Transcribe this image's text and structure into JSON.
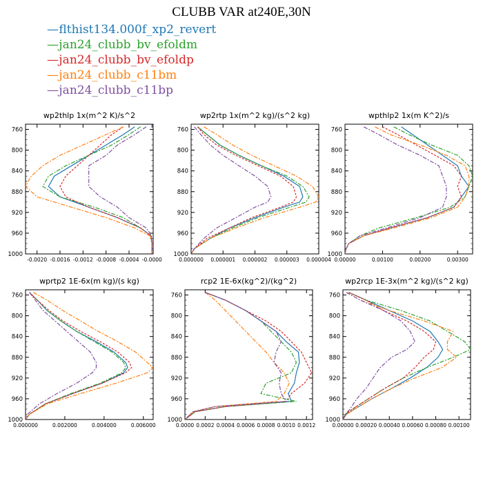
{
  "title": "CLUBB VAR at240E,30N",
  "series_legend": [
    {
      "name": "flthist134.000f_xp2_revert",
      "color": "#1f77b4"
    },
    {
      "name": "jan24_clubb_bv_efoldm",
      "color": "#2ca02c"
    },
    {
      "name": "jan24_clubb_bv_efoldp",
      "color": "#d62728"
    },
    {
      "name": "jan24_clubb_c11bm",
      "color": "#ff7f0e"
    },
    {
      "name": "jan24_clubb_c11bp",
      "color": "#7f4fa0"
    }
  ],
  "chart_data": [
    {
      "type": "line",
      "title": "wp2thlp  1x(m^2 K)/s^2",
      "xlim": [
        -0.0022,
        2e-05
      ],
      "xticks": [
        -0.002,
        -0.0016,
        -0.0012,
        -0.0008,
        -0.0004,
        0
      ],
      "xtick_labels": [
        "-0.0020",
        "-0.0016",
        "-0.0012",
        "-0.0008",
        "-0.0004",
        "-0.0000"
      ],
      "ylim": [
        1000,
        750
      ],
      "yticks": [
        760,
        800,
        840,
        880,
        920,
        960,
        1000
      ],
      "y": [
        755,
        770,
        790,
        810,
        830,
        850,
        870,
        890,
        910,
        930,
        950,
        965,
        980,
        990,
        1000
      ],
      "series": [
        {
          "name": "flthist134.000f_xp2_revert",
          "values": [
            -0.0003,
            -0.0005,
            -0.0008,
            -0.0011,
            -0.0014,
            -0.0017,
            -0.0018,
            -0.0016,
            -0.0011,
            -0.0006,
            -0.0002,
            -2e-05,
            0,
            0,
            0
          ]
        },
        {
          "name": "jan24_clubb_bv_efoldm",
          "values": [
            -0.0002,
            -0.0004,
            -0.0007,
            -0.0011,
            -0.0015,
            -0.0018,
            -0.0019,
            -0.0016,
            -0.001,
            -0.0005,
            -0.0002,
            -2e-05,
            0,
            0,
            0
          ]
        },
        {
          "name": "jan24_clubb_bv_efoldp",
          "values": [
            -0.0005,
            -0.0007,
            -0.0009,
            -0.0011,
            -0.0013,
            -0.0015,
            -0.0016,
            -0.0015,
            -0.0011,
            -0.0006,
            -0.0002,
            -2e-05,
            0,
            0,
            0
          ]
        },
        {
          "name": "jan24_clubb_c11bm",
          "values": [
            -0.0005,
            -0.0008,
            -0.0012,
            -0.0016,
            -0.0019,
            -0.0021,
            -0.0022,
            -0.002,
            -0.0014,
            -0.0008,
            -0.0003,
            -4e-05,
            0,
            0,
            0
          ]
        },
        {
          "name": "jan24_clubb_c11bp",
          "values": [
            -0.0001,
            -0.0003,
            -0.0006,
            -0.0008,
            -0.0011,
            -0.0011,
            -0.0011,
            -0.0009,
            -0.0006,
            -0.0004,
            -0.0001,
            -1e-05,
            0,
            0,
            0
          ]
        }
      ]
    },
    {
      "type": "line",
      "title": "wp2rtp  1x(m^2 kg)/(s^2 kg)",
      "xlim": [
        0,
        4e-06
      ],
      "xticks": [
        0,
        1e-06,
        2e-06,
        3e-06,
        4e-06
      ],
      "xtick_labels": [
        "0.000000",
        "0.000001",
        "0.000002",
        "0.000003",
        "0.000004"
      ],
      "ylim": [
        1000,
        750
      ],
      "yticks": [
        760,
        800,
        840,
        880,
        920,
        960,
        1000
      ],
      "y": [
        755,
        770,
        790,
        810,
        830,
        850,
        870,
        890,
        900,
        910,
        930,
        950,
        970,
        990,
        1000
      ],
      "series": [
        {
          "name": "flthist134.000f_xp2_revert",
          "values": [
            2e-07,
            5e-07,
            9e-07,
            1.5e-06,
            2.2e-06,
            2.9e-06,
            3.4e-06,
            3.5e-06,
            3.4e-06,
            2.9e-06,
            2e-06,
            1.2e-06,
            6e-07,
            1e-07,
            0
          ]
        },
        {
          "name": "jan24_clubb_bv_efoldm",
          "values": [
            2e-07,
            5e-07,
            9e-07,
            1.5e-06,
            2.2e-06,
            3e-06,
            3.5e-06,
            3.7e-06,
            3.6e-06,
            3.1e-06,
            2.1e-06,
            1.3e-06,
            6e-07,
            1e-07,
            0
          ]
        },
        {
          "name": "jan24_clubb_bv_efoldp",
          "values": [
            2e-07,
            4e-07,
            8e-07,
            1.4e-06,
            2.1e-06,
            2.8e-06,
            3.2e-06,
            3.3e-06,
            3.2e-06,
            2.8e-06,
            1.9e-06,
            1.2e-06,
            5e-07,
            1e-07,
            0
          ]
        },
        {
          "name": "jan24_clubb_c11bm",
          "values": [
            4e-07,
            8e-07,
            1.3e-06,
            1.9e-06,
            2.6e-06,
            3.3e-06,
            3.8e-06,
            4e-06,
            3.9e-06,
            3.4e-06,
            2.3e-06,
            1.4e-06,
            6e-07,
            1e-07,
            0
          ]
        },
        {
          "name": "jan24_clubb_c11bp",
          "values": [
            1e-07,
            3e-07,
            6e-07,
            1e-06,
            1.5e-06,
            2e-06,
            2.4e-06,
            2.5e-06,
            2.4e-06,
            2e-06,
            1.4e-06,
            8e-07,
            4e-07,
            1e-07,
            0
          ]
        }
      ]
    },
    {
      "type": "line",
      "title": "wpthlp2  1x(m K^2)/s",
      "xlim": [
        0,
        0.0034
      ],
      "xticks": [
        0,
        0.001,
        0.002,
        0.003
      ],
      "xtick_labels": [
        "0.00000",
        "0.00100",
        "0.00200",
        "0.00300"
      ],
      "ylim": [
        1000,
        750
      ],
      "yticks": [
        760,
        800,
        840,
        880,
        920,
        960,
        1000
      ],
      "y": [
        755,
        770,
        790,
        810,
        830,
        850,
        870,
        890,
        910,
        930,
        950,
        965,
        980,
        990,
        1000
      ],
      "series": [
        {
          "name": "flthist134.000f_xp2_revert",
          "values": [
            0.0015,
            0.0018,
            0.0022,
            0.0026,
            0.003,
            0.0031,
            0.0033,
            0.0031,
            0.0029,
            0.0022,
            0.0012,
            0.0005,
            0.0001,
            3e-05,
            0
          ]
        },
        {
          "name": "jan24_clubb_bv_efoldm",
          "values": [
            0.0013,
            0.0017,
            0.0023,
            0.003,
            0.0033,
            0.0034,
            0.0033,
            0.0032,
            0.0028,
            0.0019,
            0.0009,
            0.0004,
            0.0001,
            3e-05,
            0
          ]
        },
        {
          "name": "jan24_clubb_bv_efoldp",
          "values": [
            0.001,
            0.0014,
            0.0019,
            0.0024,
            0.0029,
            0.0031,
            0.003,
            0.0031,
            0.0029,
            0.0022,
            0.0012,
            0.0005,
            0.0001,
            3e-05,
            0
          ]
        },
        {
          "name": "jan24_clubb_c11bm",
          "values": [
            0.0008,
            0.0012,
            0.002,
            0.0027,
            0.0032,
            0.0033,
            0.0033,
            0.0032,
            0.003,
            0.0023,
            0.0013,
            0.0005,
            0.0001,
            3e-05,
            0
          ]
        },
        {
          "name": "jan24_clubb_c11bp",
          "values": [
            0.0005,
            0.0009,
            0.0014,
            0.002,
            0.0025,
            0.0026,
            0.0027,
            0.0027,
            0.0026,
            0.002,
            0.0011,
            0.0004,
            0.0001,
            3e-05,
            0
          ]
        }
      ]
    },
    {
      "type": "line",
      "title": "wprtp2  1E-6x(m kg)/(s kg)",
      "xlim": [
        0,
        0.0065
      ],
      "xticks": [
        0,
        0.002,
        0.004,
        0.006
      ],
      "xtick_labels": [
        "0.000000",
        "0.002000",
        "0.004000",
        "0.006000"
      ],
      "ylim": [
        1000,
        750
      ],
      "yticks": [
        760,
        800,
        840,
        880,
        920,
        960,
        1000
      ],
      "y": [
        755,
        770,
        790,
        810,
        830,
        850,
        870,
        890,
        900,
        910,
        930,
        950,
        970,
        990,
        1000
      ],
      "series": [
        {
          "name": "flthist134.000f_xp2_revert",
          "values": [
            0.0002,
            0.0006,
            0.0011,
            0.0018,
            0.0026,
            0.0036,
            0.0045,
            0.0051,
            0.0052,
            0.005,
            0.0039,
            0.0024,
            0.001,
            0.0002,
            0
          ]
        },
        {
          "name": "jan24_clubb_bv_efoldm",
          "values": [
            0.0002,
            0.0006,
            0.0011,
            0.0018,
            0.0026,
            0.0035,
            0.0044,
            0.005,
            0.0051,
            0.0049,
            0.0038,
            0.0023,
            0.001,
            0.0002,
            0
          ]
        },
        {
          "name": "jan24_clubb_bv_efoldp",
          "values": [
            0.0002,
            0.0006,
            0.0012,
            0.0019,
            0.0028,
            0.0038,
            0.0047,
            0.0053,
            0.0054,
            0.0051,
            0.0039,
            0.0024,
            0.001,
            0.0002,
            0
          ]
        },
        {
          "name": "jan24_clubb_c11bm",
          "values": [
            0.0004,
            0.0011,
            0.0019,
            0.0028,
            0.0037,
            0.0047,
            0.0056,
            0.0062,
            0.0065,
            0.0062,
            0.0046,
            0.0028,
            0.0011,
            0.0002,
            0
          ]
        },
        {
          "name": "jan24_clubb_c11bp",
          "values": [
            0.0002,
            0.0005,
            0.0009,
            0.0015,
            0.0021,
            0.0027,
            0.0033,
            0.0036,
            0.0036,
            0.0034,
            0.0026,
            0.0016,
            0.0007,
            0.0001,
            0
          ]
        }
      ]
    },
    {
      "type": "line",
      "title": "rcp2  1E-6x(kg^2)/(kg^2)",
      "xlim": [
        0,
        0.00126
      ],
      "xticks": [
        0,
        0.0002,
        0.0004,
        0.0006,
        0.0008,
        0.001,
        0.0012
      ],
      "xtick_labels": [
        "0.0000",
        "0.0002",
        "0.0004",
        "0.0006",
        "0.0008",
        "0.0010",
        "0.0012"
      ],
      "ylim": [
        1000,
        750
      ],
      "yticks": [
        760,
        800,
        840,
        880,
        920,
        960,
        1000
      ],
      "y": [
        755,
        770,
        790,
        810,
        830,
        850,
        870,
        890,
        910,
        930,
        950,
        965,
        975,
        985,
        1000
      ],
      "series": [
        {
          "name": "flthist134.000f_xp2_revert",
          "values": [
            0.0002,
            0.0004,
            0.0006,
            0.00075,
            0.0009,
            0.001,
            0.00112,
            0.00113,
            0.0011,
            0.00108,
            0.00102,
            0.00105,
            0.0004,
            0.0001,
            0
          ]
        },
        {
          "name": "jan24_clubb_bv_efoldm",
          "values": [
            0.0002,
            0.0004,
            0.0006,
            0.00075,
            0.00085,
            0.00095,
            0.00105,
            0.0011,
            0.00105,
            0.0008,
            0.00075,
            0.0011,
            0.0004,
            0.0001,
            0
          ]
        },
        {
          "name": "jan24_clubb_bv_efoldp",
          "values": [
            0.0002,
            0.0004,
            0.0006,
            0.0008,
            0.00095,
            0.00105,
            0.00115,
            0.0012,
            0.00125,
            0.00118,
            0.00105,
            0.001,
            0.0004,
            0.0001,
            0
          ]
        },
        {
          "name": "jan24_clubb_c11bm",
          "values": [
            0.0002,
            0.0003,
            0.0004,
            0.0005,
            0.0006,
            0.0007,
            0.0008,
            0.00088,
            0.00098,
            0.00103,
            0.00098,
            0.0009,
            0.0003,
            8e-05,
            0
          ]
        },
        {
          "name": "jan24_clubb_c11bp",
          "values": [
            0.0002,
            0.0004,
            0.0006,
            0.00075,
            0.0009,
            0.00095,
            0.0009,
            0.00088,
            0.00095,
            0.00093,
            0.00095,
            0.001,
            0.0003,
            8e-05,
            0
          ]
        }
      ]
    },
    {
      "type": "line",
      "title": "wp2rcp  1E-3x(m^2 kg)/(s^2 kg)",
      "xlim": [
        0,
        0.0011
      ],
      "xticks": [
        0,
        0.0002,
        0.0004,
        0.0006,
        0.0008,
        0.001
      ],
      "xtick_labels": [
        "0.00000",
        "0.00020",
        "0.00040",
        "0.00060",
        "0.00080",
        "0.00100"
      ],
      "ylim": [
        1000,
        750
      ],
      "yticks": [
        760,
        800,
        840,
        880,
        920,
        960,
        1000
      ],
      "y": [
        755,
        770,
        790,
        810,
        830,
        850,
        865,
        880,
        900,
        920,
        940,
        960,
        980,
        990,
        1000
      ],
      "series": [
        {
          "name": "flthist134.000f_xp2_revert",
          "values": [
            5e-05,
            0.0002,
            0.0004,
            0.0006,
            0.00075,
            0.00082,
            0.00086,
            0.00082,
            0.00072,
            0.00058,
            0.00042,
            0.00025,
            0.0001,
            3e-05,
            0
          ]
        },
        {
          "name": "jan24_clubb_bv_efoldm",
          "values": [
            5e-05,
            0.0002,
            0.0005,
            0.00075,
            0.0009,
            0.00105,
            0.0011,
            0.00095,
            0.00072,
            0.00052,
            0.00036,
            0.00022,
            8e-05,
            2e-05,
            0
          ]
        },
        {
          "name": "jan24_clubb_bv_efoldp",
          "values": [
            5e-05,
            0.0002,
            0.00035,
            0.00055,
            0.0007,
            0.0008,
            0.00078,
            0.0007,
            0.00062,
            0.00052,
            0.00036,
            0.00022,
            8e-05,
            2e-05,
            0
          ]
        },
        {
          "name": "jan24_clubb_c11bm",
          "values": [
            3e-05,
            0.00015,
            0.0004,
            0.0007,
            0.00095,
            0.0009,
            0.0009,
            0.00098,
            0.00085,
            0.00062,
            0.00042,
            0.00025,
            0.0001,
            3e-05,
            0
          ]
        },
        {
          "name": "jan24_clubb_c11bp",
          "values": [
            3e-05,
            0.00015,
            0.00035,
            0.0005,
            0.00058,
            0.00062,
            0.00055,
            0.00042,
            0.00032,
            0.00026,
            0.0002,
            0.00012,
            6e-05,
            2e-05,
            0
          ]
        }
      ]
    }
  ]
}
